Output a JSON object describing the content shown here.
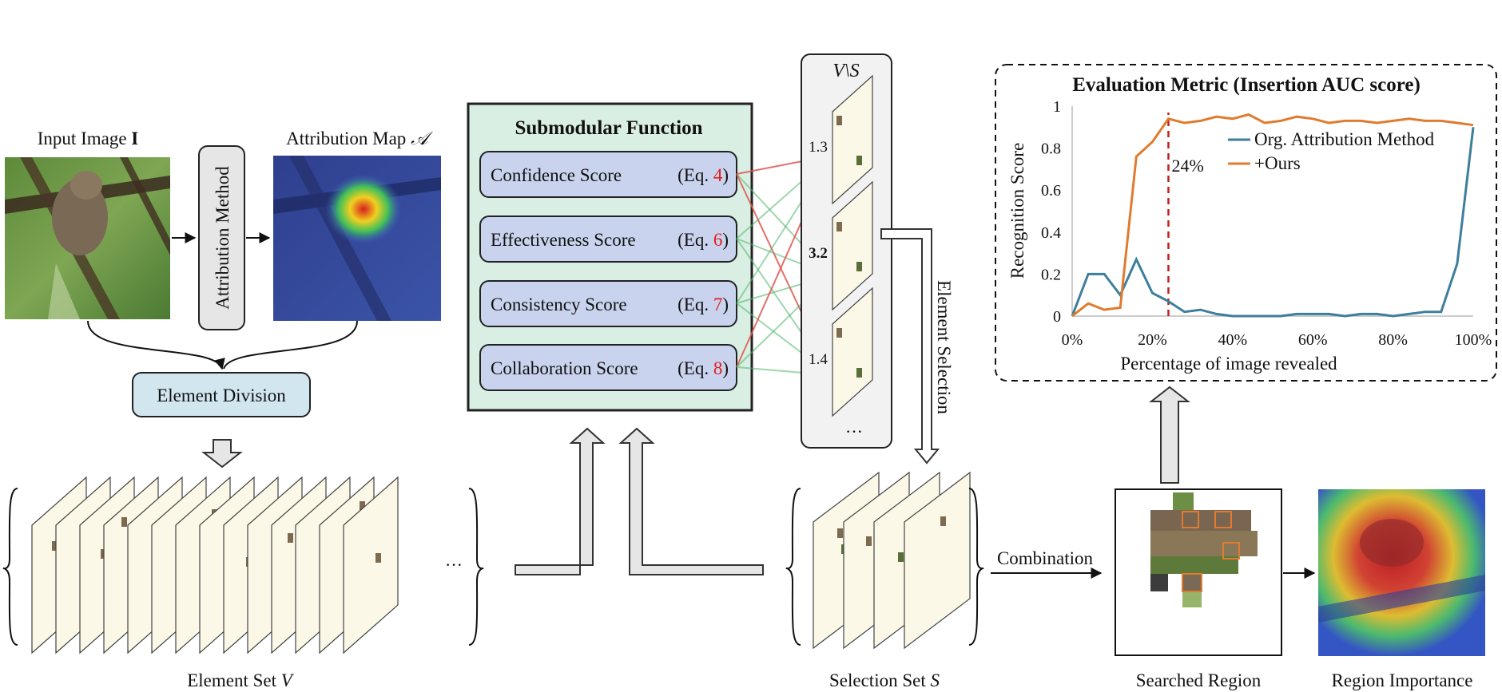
{
  "input": {
    "label_text": "Input Image ",
    "label_bold": "I"
  },
  "attr_method": {
    "label": "Attribution Method"
  },
  "attr_map": {
    "label_text": "Attribution Map ",
    "label_symbol": "𝒜"
  },
  "division": {
    "label": "Element Division"
  },
  "element_set": {
    "label_text": "Element Set ",
    "label_symbol": "V",
    "ellipsis": "···"
  },
  "submodular": {
    "title": "Submodular Function",
    "scores": [
      {
        "name": "Confidence Score",
        "eq_prefix": "(Eq. ",
        "eq_num": "4",
        "eq_suffix": ")"
      },
      {
        "name": "Effectiveness Score",
        "eq_prefix": "(Eq. ",
        "eq_num": "6",
        "eq_suffix": ")"
      },
      {
        "name": "Consistency Score",
        "eq_prefix": "(Eq. ",
        "eq_num": "7",
        "eq_suffix": ")"
      },
      {
        "name": "Collaboration Score",
        "eq_prefix": "(Eq. ",
        "eq_num": "8",
        "eq_suffix": ")"
      }
    ]
  },
  "candidates": {
    "header": "V\\S",
    "values": [
      "1.3",
      "3.2",
      "1.4"
    ],
    "ellipsis": "···"
  },
  "element_selection": {
    "label": "Element Selection"
  },
  "selection_set": {
    "label_text": "Selection Set ",
    "label_symbol": "S"
  },
  "combination": {
    "label": "Combination"
  },
  "searched_region": {
    "label": "Searched Region"
  },
  "region_importance": {
    "label": "Region Importance"
  },
  "colors": {
    "score_box_fill": "#c9d3ee",
    "submodular_fill": "#d9efe3",
    "division_fill": "#d2e6f0",
    "slice_fill": "#fbf8e8",
    "eq_red": "#e0201b",
    "series_org": "#3d7f9c",
    "series_ours": "#e07b2f",
    "link_red": "#e0574f",
    "link_green": "#4fb56d"
  },
  "chart_data": {
    "type": "line",
    "title": "Evaluation Metric (Insertion AUC score)",
    "xlabel": "Percentage of image revealed",
    "ylabel": "Recognition Score",
    "xlim": [
      0,
      100
    ],
    "ylim": [
      0,
      1
    ],
    "xticks": [
      "0%",
      "20%",
      "40%",
      "60%",
      "80%",
      "100%"
    ],
    "yticks": [
      "0",
      "0.2",
      "0.4",
      "0.6",
      "0.8",
      "1"
    ],
    "grid": false,
    "legend": "top-right",
    "annotation": {
      "x": 24,
      "label": "24%"
    },
    "series": [
      {
        "name": "Org. Attribution Method",
        "x": [
          0,
          4,
          8,
          12,
          16,
          20,
          24,
          28,
          32,
          36,
          40,
          44,
          48,
          52,
          56,
          60,
          64,
          68,
          72,
          76,
          80,
          84,
          88,
          92,
          96,
          100
        ],
        "y": [
          0,
          0.2,
          0.2,
          0.1,
          0.27,
          0.11,
          0.07,
          0.02,
          0.03,
          0.01,
          0.0,
          0.0,
          0.0,
          0.0,
          0.01,
          0.01,
          0.01,
          0.0,
          0.01,
          0.01,
          0.0,
          0.01,
          0.02,
          0.02,
          0.25,
          0.9
        ]
      },
      {
        "name": "+Ours",
        "x": [
          0,
          4,
          8,
          12,
          16,
          20,
          24,
          28,
          32,
          36,
          40,
          44,
          48,
          52,
          56,
          60,
          64,
          68,
          72,
          76,
          80,
          84,
          88,
          92,
          96,
          100
        ],
        "y": [
          0,
          0.06,
          0.03,
          0.04,
          0.76,
          0.83,
          0.94,
          0.92,
          0.93,
          0.95,
          0.94,
          0.96,
          0.92,
          0.93,
          0.95,
          0.94,
          0.92,
          0.93,
          0.93,
          0.92,
          0.93,
          0.94,
          0.93,
          0.93,
          0.92,
          0.91
        ]
      }
    ]
  }
}
